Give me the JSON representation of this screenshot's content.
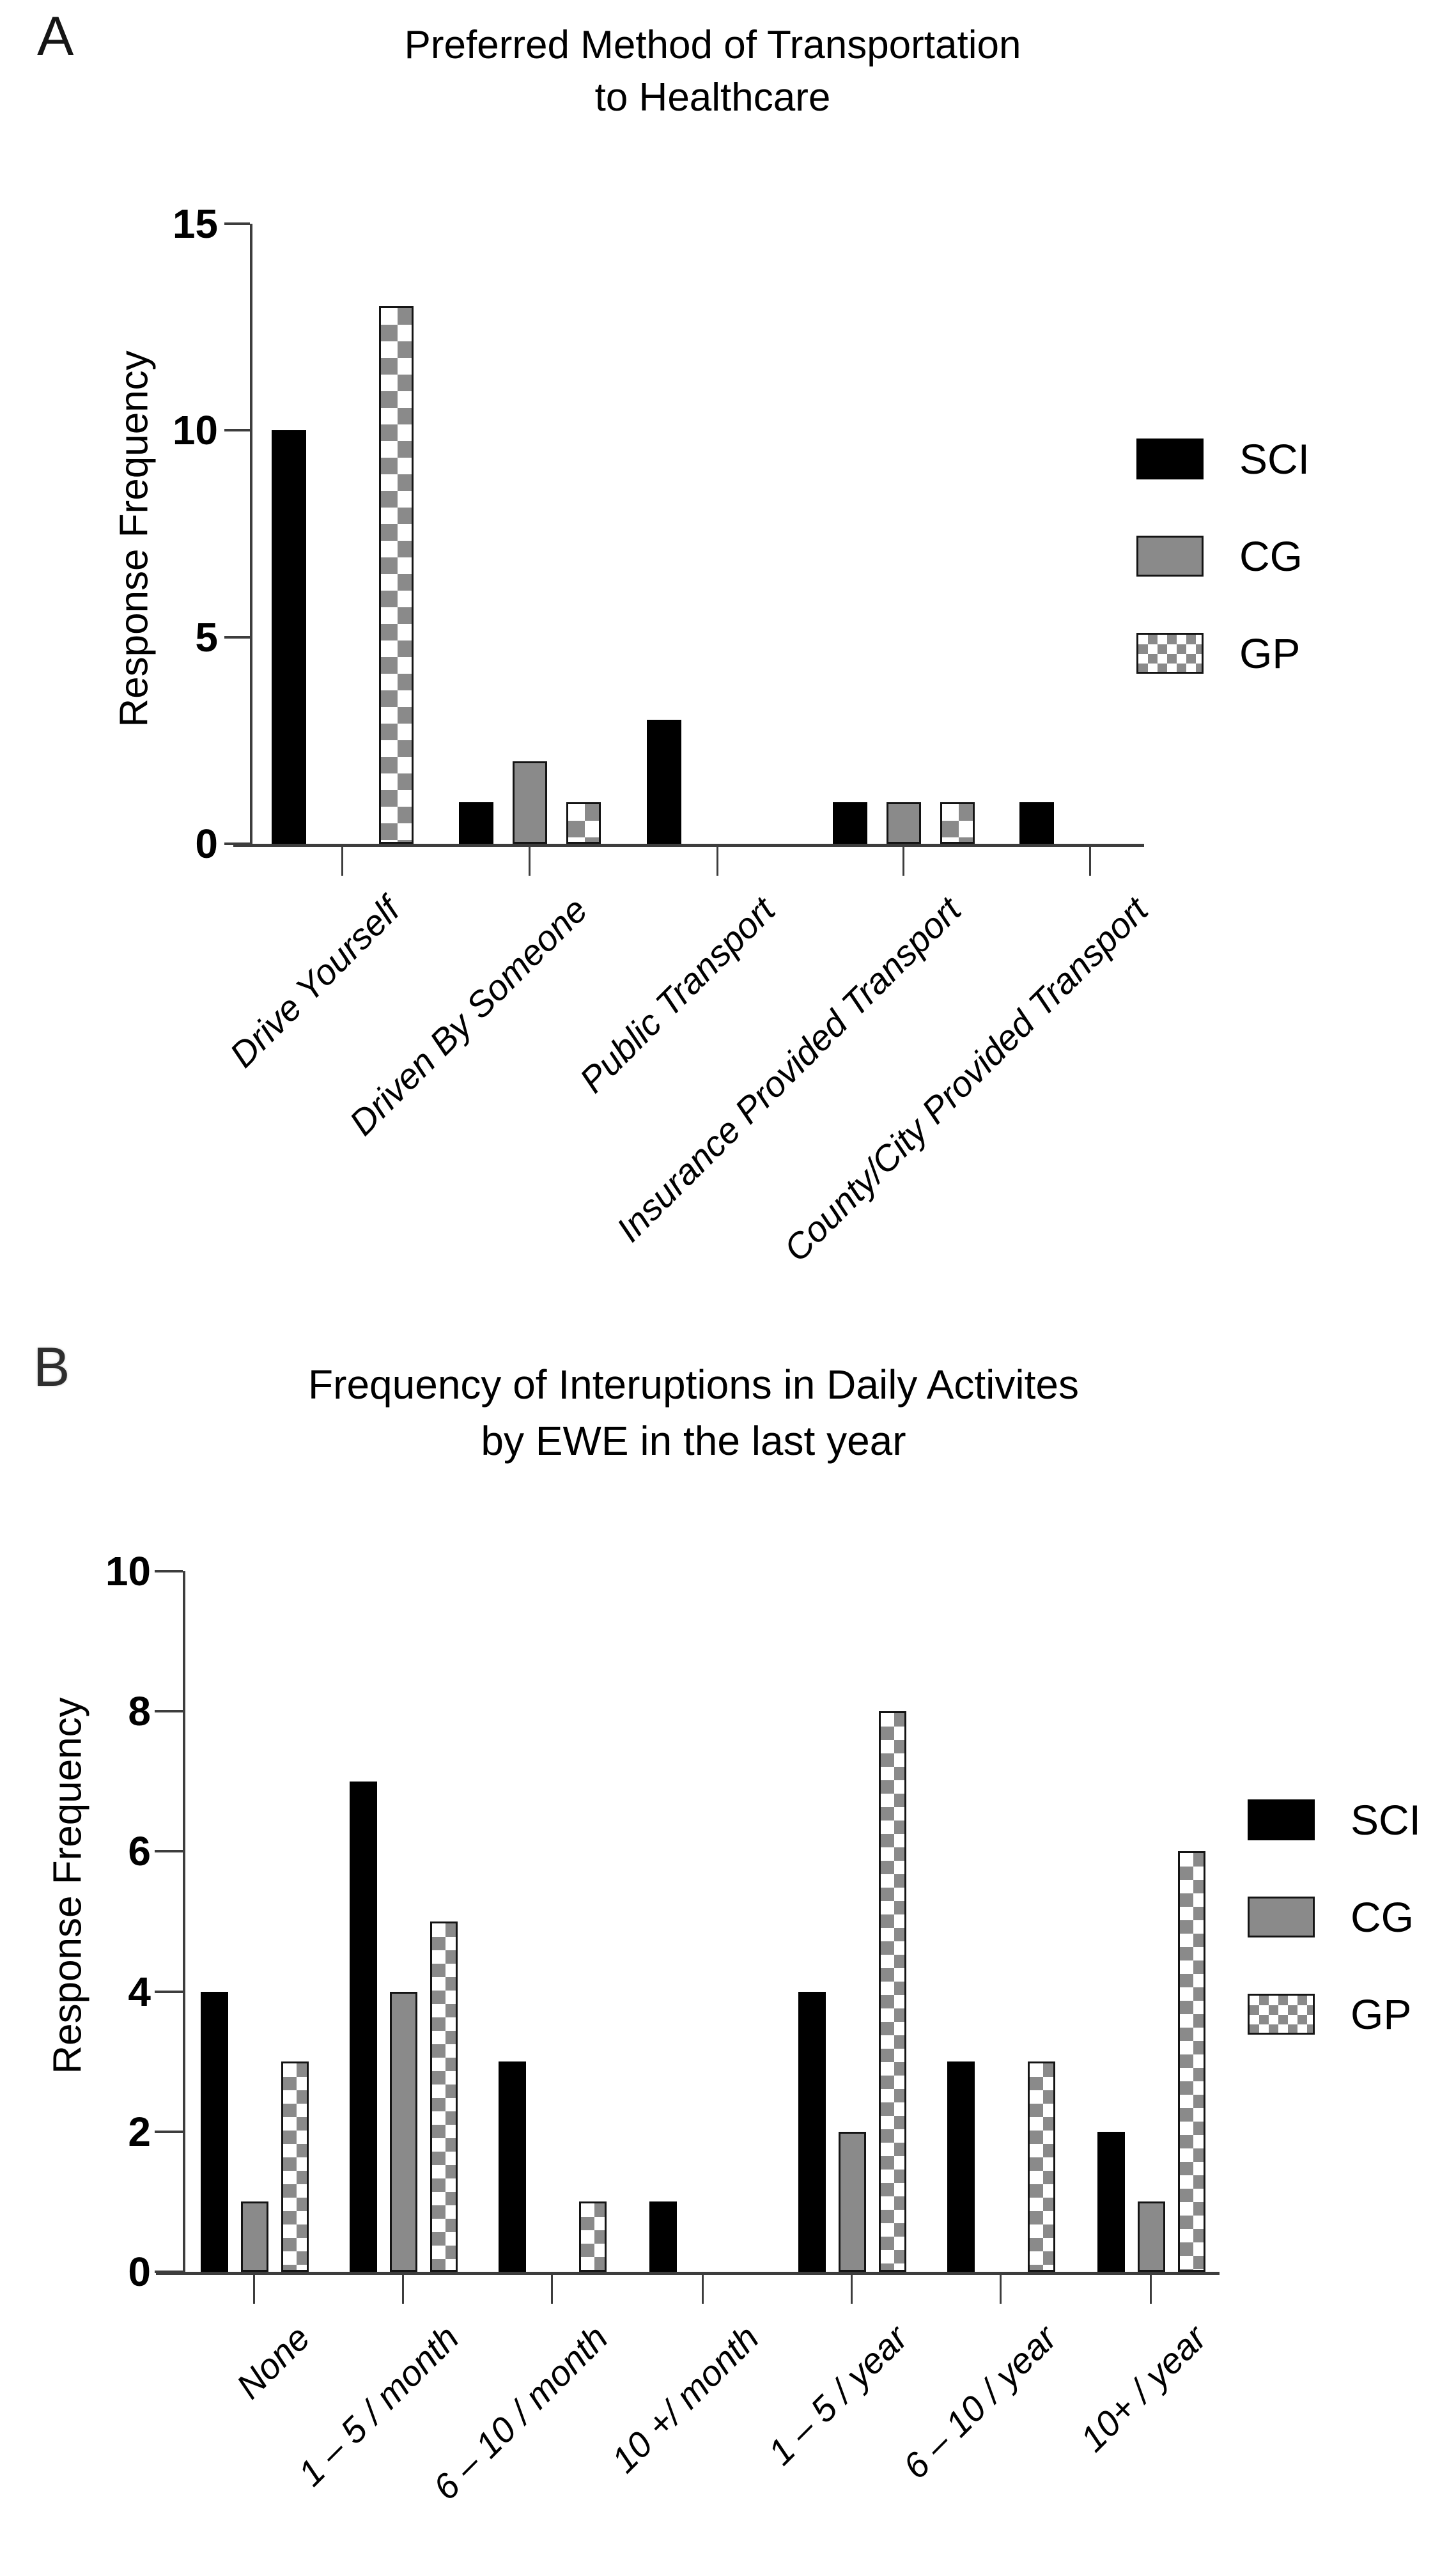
{
  "figure": {
    "background": "#ffffff"
  },
  "colors": {
    "sci_fill": "#000000",
    "cg_fill": "#8a8a8a",
    "gp_check": "#8a8a8a",
    "bar_border": "#141414",
    "axis": "#3d3d3d",
    "text": "#000000"
  },
  "panels": [
    {
      "panel_label": "A",
      "title_line1": "Preferred Method of Transportation",
      "title_line2": "to Healthcare",
      "legend": [
        "SCI",
        "CG",
        "GP"
      ],
      "chart_data": {
        "type": "bar",
        "title": "Preferred Method of Transportation to Healthcare",
        "ylabel": "Response Frequency",
        "xlabel": "",
        "ylim": [
          0,
          15
        ],
        "yticks": [
          0,
          5,
          10,
          15
        ],
        "grid": false,
        "legend_position": "right",
        "categories": [
          "Drive Yourself",
          "Driven By Someone",
          "Public Transport",
          "Insurance Provided Transport",
          "County/City Provided Transport"
        ],
        "series": [
          {
            "name": "SCI",
            "style": "solid-black",
            "values": [
              10,
              1,
              3,
              1,
              1
            ]
          },
          {
            "name": "CG",
            "style": "solid-gray",
            "values": [
              0,
              2,
              0,
              1,
              0
            ]
          },
          {
            "name": "GP",
            "style": "checkered",
            "values": [
              13,
              1,
              0,
              1,
              0
            ]
          }
        ]
      }
    },
    {
      "panel_label": "B",
      "title_line1": "Frequency of Interuptions in Daily Activites",
      "title_line2": "by EWE in the last year",
      "legend": [
        "SCI",
        "CG",
        "GP"
      ],
      "chart_data": {
        "type": "bar",
        "title": "Frequency of Interuptions in Daily Activites by EWE in the last year",
        "ylabel": "Response Frequency",
        "xlabel": "",
        "ylim": [
          0,
          10
        ],
        "yticks": [
          0,
          2,
          4,
          6,
          8,
          10
        ],
        "grid": false,
        "legend_position": "right",
        "categories": [
          "None",
          "1 – 5 / month",
          "6 – 10 / month",
          "10 +/ month",
          "1 – 5 / year",
          "6 – 10 / year",
          "10+ / year"
        ],
        "series": [
          {
            "name": "SCI",
            "style": "solid-black",
            "values": [
              4,
              7,
              3,
              1,
              4,
              3,
              2
            ]
          },
          {
            "name": "CG",
            "style": "solid-gray",
            "values": [
              1,
              4,
              0,
              0,
              2,
              0,
              1
            ]
          },
          {
            "name": "GP",
            "style": "checkered",
            "values": [
              3,
              5,
              1,
              0,
              8,
              3,
              6
            ]
          }
        ]
      }
    }
  ]
}
